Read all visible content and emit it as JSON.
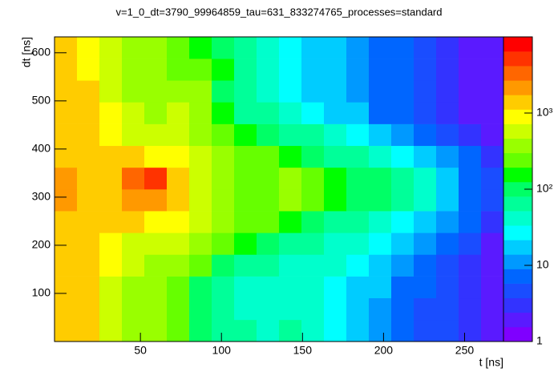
{
  "chart_data": {
    "type": "heatmap",
    "title": "v=1_0_dt=3790_99964859_tau=631_833274765_processes=standard",
    "x_label": "t [ns]",
    "y_label": "dt [ns]",
    "xlim": [
      -3,
      274
    ],
    "ylim": [
      0,
      633
    ],
    "xticks": [
      50,
      100,
      150,
      200,
      250
    ],
    "yticks": [
      100,
      200,
      300,
      400,
      500,
      600
    ],
    "zlim": [
      1,
      10000
    ],
    "zlog": true,
    "zticks": [
      1,
      10,
      {
        "value": 100,
        "label": "10²"
      },
      {
        "value": 1000,
        "label": "10³"
      }
    ],
    "palette": [
      "#7f00ff",
      "#5a1aff",
      "#3333ff",
      "#1a4dff",
      "#0066ff",
      "#0099ff",
      "#00ccff",
      "#00ffff",
      "#00ffcc",
      "#00ff99",
      "#00ff66",
      "#00ff00",
      "#66ff00",
      "#99ff00",
      "#ccff00",
      "#ffff00",
      "#ffcc00",
      "#ff9900",
      "#ff6600",
      "#ff3300",
      "#ff0000"
    ],
    "x_bins": [
      -3,
      10.85,
      24.7,
      38.55,
      52.4,
      66.25,
      80.1,
      93.95,
      107.8,
      121.65,
      135.5,
      149.35,
      163.2,
      177.05,
      190.9,
      204.75,
      218.6,
      232.45,
      246.3,
      260.15,
      274
    ],
    "y_bins": [
      0,
      45.2,
      90.4,
      135.6,
      180.8,
      226,
      271.3,
      316.5,
      361.7,
      406.9,
      452.1,
      497.4,
      542.6,
      587.8,
      633
    ],
    "values": [
      [
        1500,
        1200,
        600,
        400,
        300,
        200,
        120,
        80,
        60,
        50,
        60,
        40,
        30,
        20,
        10,
        6,
        5,
        4,
        3,
        2
      ],
      [
        1500,
        1200,
        700,
        400,
        300,
        200,
        100,
        60,
        50,
        50,
        40,
        40,
        30,
        20,
        10,
        6,
        5,
        4,
        3,
        2
      ],
      [
        1500,
        1300,
        700,
        400,
        300,
        200,
        120,
        70,
        50,
        50,
        40,
        40,
        30,
        20,
        15,
        8,
        6,
        4,
        3,
        2
      ],
      [
        1500,
        1300,
        800,
        500,
        400,
        300,
        200,
        120,
        80,
        60,
        40,
        40,
        40,
        30,
        20,
        12,
        8,
        5,
        3,
        2
      ],
      [
        1500,
        1300,
        900,
        600,
        600,
        500,
        300,
        200,
        150,
        120,
        80,
        60,
        50,
        40,
        30,
        15,
        10,
        6,
        4,
        2
      ],
      [
        1600,
        1400,
        1200,
        1200,
        1000,
        800,
        500,
        300,
        250,
        200,
        150,
        100,
        80,
        60,
        40,
        30,
        20,
        10,
        6,
        3
      ],
      [
        1800,
        1600,
        1500,
        2000,
        2500,
        1200,
        500,
        300,
        250,
        250,
        300,
        200,
        150,
        120,
        100,
        60,
        40,
        20,
        8,
        4
      ],
      [
        1800,
        1600,
        1600,
        3000,
        5000,
        1500,
        500,
        300,
        250,
        250,
        300,
        200,
        150,
        120,
        100,
        60,
        40,
        20,
        8,
        4
      ],
      [
        1600,
        1400,
        1200,
        1200,
        1000,
        800,
        500,
        300,
        250,
        200,
        150,
        100,
        80,
        60,
        40,
        30,
        20,
        10,
        6,
        3
      ],
      [
        1500,
        1300,
        900,
        600,
        500,
        600,
        400,
        250,
        150,
        100,
        80,
        60,
        40,
        30,
        20,
        12,
        8,
        5,
        3,
        2
      ],
      [
        1500,
        1200,
        800,
        500,
        400,
        500,
        300,
        150,
        80,
        60,
        40,
        30,
        20,
        15,
        8,
        6,
        4,
        3,
        2,
        2
      ],
      [
        1500,
        1200,
        700,
        400,
        300,
        300,
        300,
        100,
        60,
        50,
        30,
        20,
        15,
        10,
        8,
        6,
        4,
        3,
        2,
        2
      ],
      [
        1400,
        1100,
        600,
        400,
        300,
        200,
        200,
        150,
        80,
        50,
        30,
        20,
        15,
        10,
        8,
        6,
        4,
        3,
        2,
        2
      ],
      [
        1400,
        1100,
        600,
        400,
        300,
        200,
        150,
        100,
        80,
        50,
        30,
        20,
        15,
        10,
        8,
        6,
        4,
        3,
        2,
        2
      ]
    ]
  }
}
